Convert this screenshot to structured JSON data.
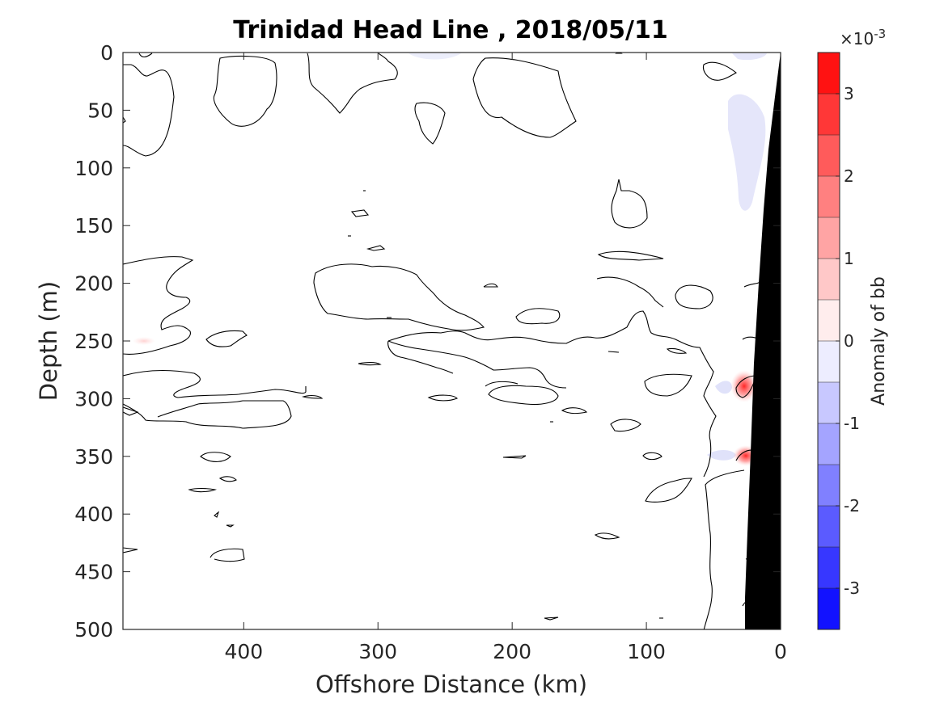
{
  "chart_data": {
    "type": "heatmap",
    "title": "Trinidad Head Line , 2018/05/11",
    "xlabel": "Offshore Distance (km)",
    "ylabel": "Depth (m)",
    "xlim": [
      490,
      0
    ],
    "ylim": [
      500,
      0
    ],
    "x_reversed": true,
    "y_reversed": true,
    "x_ticks": [
      400,
      300,
      200,
      100,
      0
    ],
    "x_tick_labels": [
      "400",
      "300",
      "200",
      "100",
      "0"
    ],
    "y_ticks": [
      0,
      50,
      100,
      150,
      200,
      250,
      300,
      350,
      400,
      450,
      500
    ],
    "y_tick_labels": [
      "0",
      "50",
      "100",
      "150",
      "200",
      "250",
      "300",
      "350",
      "400",
      "450",
      "500"
    ],
    "colorbar": {
      "label": "Anomaly of bb",
      "exponent_label": "×10",
      "exponent_power": "-3",
      "range": [
        -3.5,
        3.5
      ],
      "levels": 14,
      "ticks": [
        3,
        2,
        1,
        0,
        -1,
        -2,
        -3
      ],
      "tick_labels": [
        "3",
        "2",
        "1",
        "0",
        "-1",
        "-2",
        "-3"
      ],
      "color_max": "#ff0000",
      "color_zero": "#ffffff",
      "color_min": "#0000ff"
    },
    "bathymetry_color": "#000000",
    "contour_level": 0,
    "anomalies": [
      {
        "type": "positive",
        "x_km": 22,
        "depth_m": 288,
        "value": 0.0012
      },
      {
        "type": "positive",
        "x_km": 22,
        "depth_m": 350,
        "value": 0.0008
      },
      {
        "type": "positive",
        "x_km": 470,
        "depth_m": 250,
        "value": 0.0002
      },
      {
        "type": "negative",
        "x_km": 35,
        "depth_m": 80,
        "value": -0.0002
      },
      {
        "type": "negative",
        "x_km": 255,
        "depth_m": 2,
        "value": -0.0001
      }
    ],
    "grid": false,
    "legend": "colorbar right"
  }
}
